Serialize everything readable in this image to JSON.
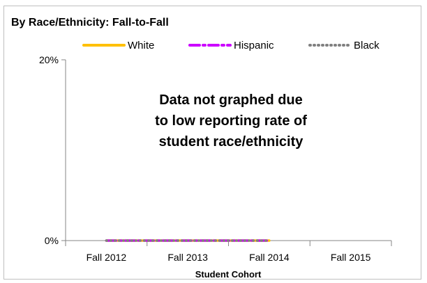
{
  "chart_data": {
    "type": "line",
    "title": "By Race/Ethnicity: Fall-to-Fall",
    "xlabel": "Student Cohort",
    "ylabel": "",
    "categories": [
      "Fall 2012",
      "Fall 2013",
      "Fall 2014",
      "Fall 2015"
    ],
    "y_ticks": [
      "20%",
      "0%"
    ],
    "ylim": [
      0,
      0.2
    ],
    "legend_position": "top",
    "grid": false,
    "series": [
      {
        "name": "White",
        "values": [
          0,
          0,
          0,
          null
        ],
        "color": "#FFC000",
        "style": "solid"
      },
      {
        "name": "Hispanic",
        "values": [
          0,
          0,
          0,
          null
        ],
        "color": "#CC00FF",
        "style": "dash-dot"
      },
      {
        "name": "Black",
        "values": [
          0,
          0,
          0,
          null
        ],
        "color": "#808080",
        "style": "round-dot"
      }
    ],
    "annotation": [
      "Data not graphed due",
      "to low reporting rate of",
      "student race/ethnicity"
    ]
  }
}
